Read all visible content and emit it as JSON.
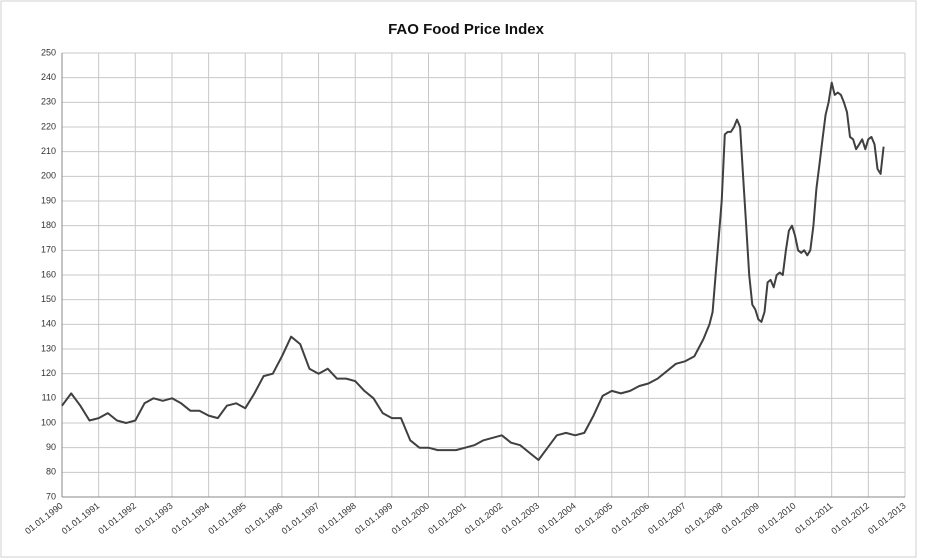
{
  "chart_data": {
    "type": "line",
    "title": "FAO Food Price Index",
    "x": [
      "01.01.1990",
      "01.04.1990",
      "01.07.1990",
      "01.10.1990",
      "01.01.1991",
      "01.04.1991",
      "01.07.1991",
      "01.10.1991",
      "01.01.1992",
      "01.04.1992",
      "01.07.1992",
      "01.10.1992",
      "01.01.1993",
      "01.04.1993",
      "01.07.1993",
      "01.10.1993",
      "01.01.1994",
      "01.04.1994",
      "01.07.1994",
      "01.10.1994",
      "01.01.1995",
      "01.04.1995",
      "01.07.1995",
      "01.10.1995",
      "01.01.1996",
      "01.04.1996",
      "01.07.1996",
      "01.10.1996",
      "01.01.1997",
      "01.04.1997",
      "01.07.1997",
      "01.10.1997",
      "01.01.1998",
      "01.04.1998",
      "01.07.1998",
      "01.10.1998",
      "01.01.1999",
      "01.04.1999",
      "01.07.1999",
      "01.10.1999",
      "01.01.2000",
      "01.04.2000",
      "01.07.2000",
      "01.10.2000",
      "01.01.2001",
      "01.04.2001",
      "01.07.2001",
      "01.10.2001",
      "01.01.2002",
      "01.04.2002",
      "01.07.2002",
      "01.10.2002",
      "01.01.2003",
      "01.04.2003",
      "01.07.2003",
      "01.10.2003",
      "01.01.2004",
      "01.04.2004",
      "01.07.2004",
      "01.10.2004",
      "01.01.2005",
      "01.04.2005",
      "01.07.2005",
      "01.10.2005",
      "01.01.2006",
      "01.04.2006",
      "01.07.2006",
      "01.10.2006",
      "01.01.2007",
      "01.04.2007",
      "01.07.2007",
      "01.09.2007",
      "01.10.2007",
      "01.11.2007",
      "01.12.2007",
      "01.01.2008",
      "01.02.2008",
      "01.03.2008",
      "01.04.2008",
      "01.05.2008",
      "01.06.2008",
      "01.07.2008",
      "01.08.2008",
      "01.09.2008",
      "01.10.2008",
      "01.11.2008",
      "01.12.2008",
      "01.01.2009",
      "01.02.2009",
      "01.03.2009",
      "01.04.2009",
      "01.05.2009",
      "01.06.2009",
      "01.07.2009",
      "01.08.2009",
      "01.09.2009",
      "01.10.2009",
      "01.11.2009",
      "01.12.2009",
      "01.01.2010",
      "01.02.2010",
      "01.03.2010",
      "01.04.2010",
      "01.05.2010",
      "01.06.2010",
      "01.07.2010",
      "01.08.2010",
      "01.09.2010",
      "01.10.2010",
      "01.11.2010",
      "01.12.2010",
      "01.01.2011",
      "01.02.2011",
      "01.03.2011",
      "01.04.2011",
      "01.05.2011",
      "01.06.2011",
      "01.07.2011",
      "01.08.2011",
      "01.09.2011",
      "01.10.2011",
      "01.11.2011",
      "01.12.2011",
      "01.01.2012",
      "01.02.2012",
      "01.03.2012",
      "01.04.2012",
      "01.05.2012",
      "01.06.2012"
    ],
    "series": [
      {
        "name": "FAO Food Price Index",
        "color": "#404040",
        "values": [
          107,
          112,
          107,
          101,
          102,
          104,
          101,
          100,
          101,
          108,
          110,
          109,
          110,
          108,
          105,
          105,
          103,
          102,
          107,
          108,
          106,
          112,
          119,
          120,
          127,
          135,
          132,
          122,
          120,
          122,
          118,
          118,
          117,
          113,
          110,
          104,
          102,
          102,
          93,
          90,
          90,
          89,
          89,
          89,
          90,
          91,
          93,
          94,
          95,
          92,
          91,
          88,
          85,
          90,
          95,
          96,
          95,
          96,
          103,
          111,
          113,
          112,
          113,
          115,
          116,
          118,
          121,
          124,
          125,
          127,
          134,
          140,
          145,
          160,
          175,
          190,
          217,
          218,
          218,
          220,
          223,
          220,
          200,
          180,
          160,
          148,
          146,
          142,
          141,
          145,
          157,
          158,
          155,
          160,
          161,
          160,
          170,
          178,
          180,
          176,
          170,
          169,
          170,
          168,
          170,
          180,
          195,
          205,
          215,
          225,
          230,
          238,
          233,
          234,
          233,
          230,
          226,
          216,
          215,
          211,
          213,
          215,
          211,
          215,
          216,
          213,
          203,
          201,
          212
        ]
      }
    ],
    "xlim": [
      "01.01.1990",
      "01.01.2013"
    ],
    "xticks": [
      "01.01.1990",
      "01.01.1991",
      "01.01.1992",
      "01.01.1993",
      "01.01.1994",
      "01.01.1995",
      "01.01.1996",
      "01.01.1997",
      "01.01.1998",
      "01.01.1999",
      "01.01.2000",
      "01.01.2001",
      "01.01.2002",
      "01.01.2003",
      "01.01.2004",
      "01.01.2005",
      "01.01.2006",
      "01.01.2007",
      "01.01.2008",
      "01.01.2009",
      "01.01.2010",
      "01.01.2011",
      "01.01.2012",
      "01.01.2013"
    ],
    "ylim": [
      70,
      250
    ],
    "yticks": [
      70,
      80,
      90,
      100,
      110,
      120,
      130,
      140,
      150,
      160,
      170,
      180,
      190,
      200,
      210,
      220,
      230,
      240,
      250
    ],
    "grid": true
  }
}
